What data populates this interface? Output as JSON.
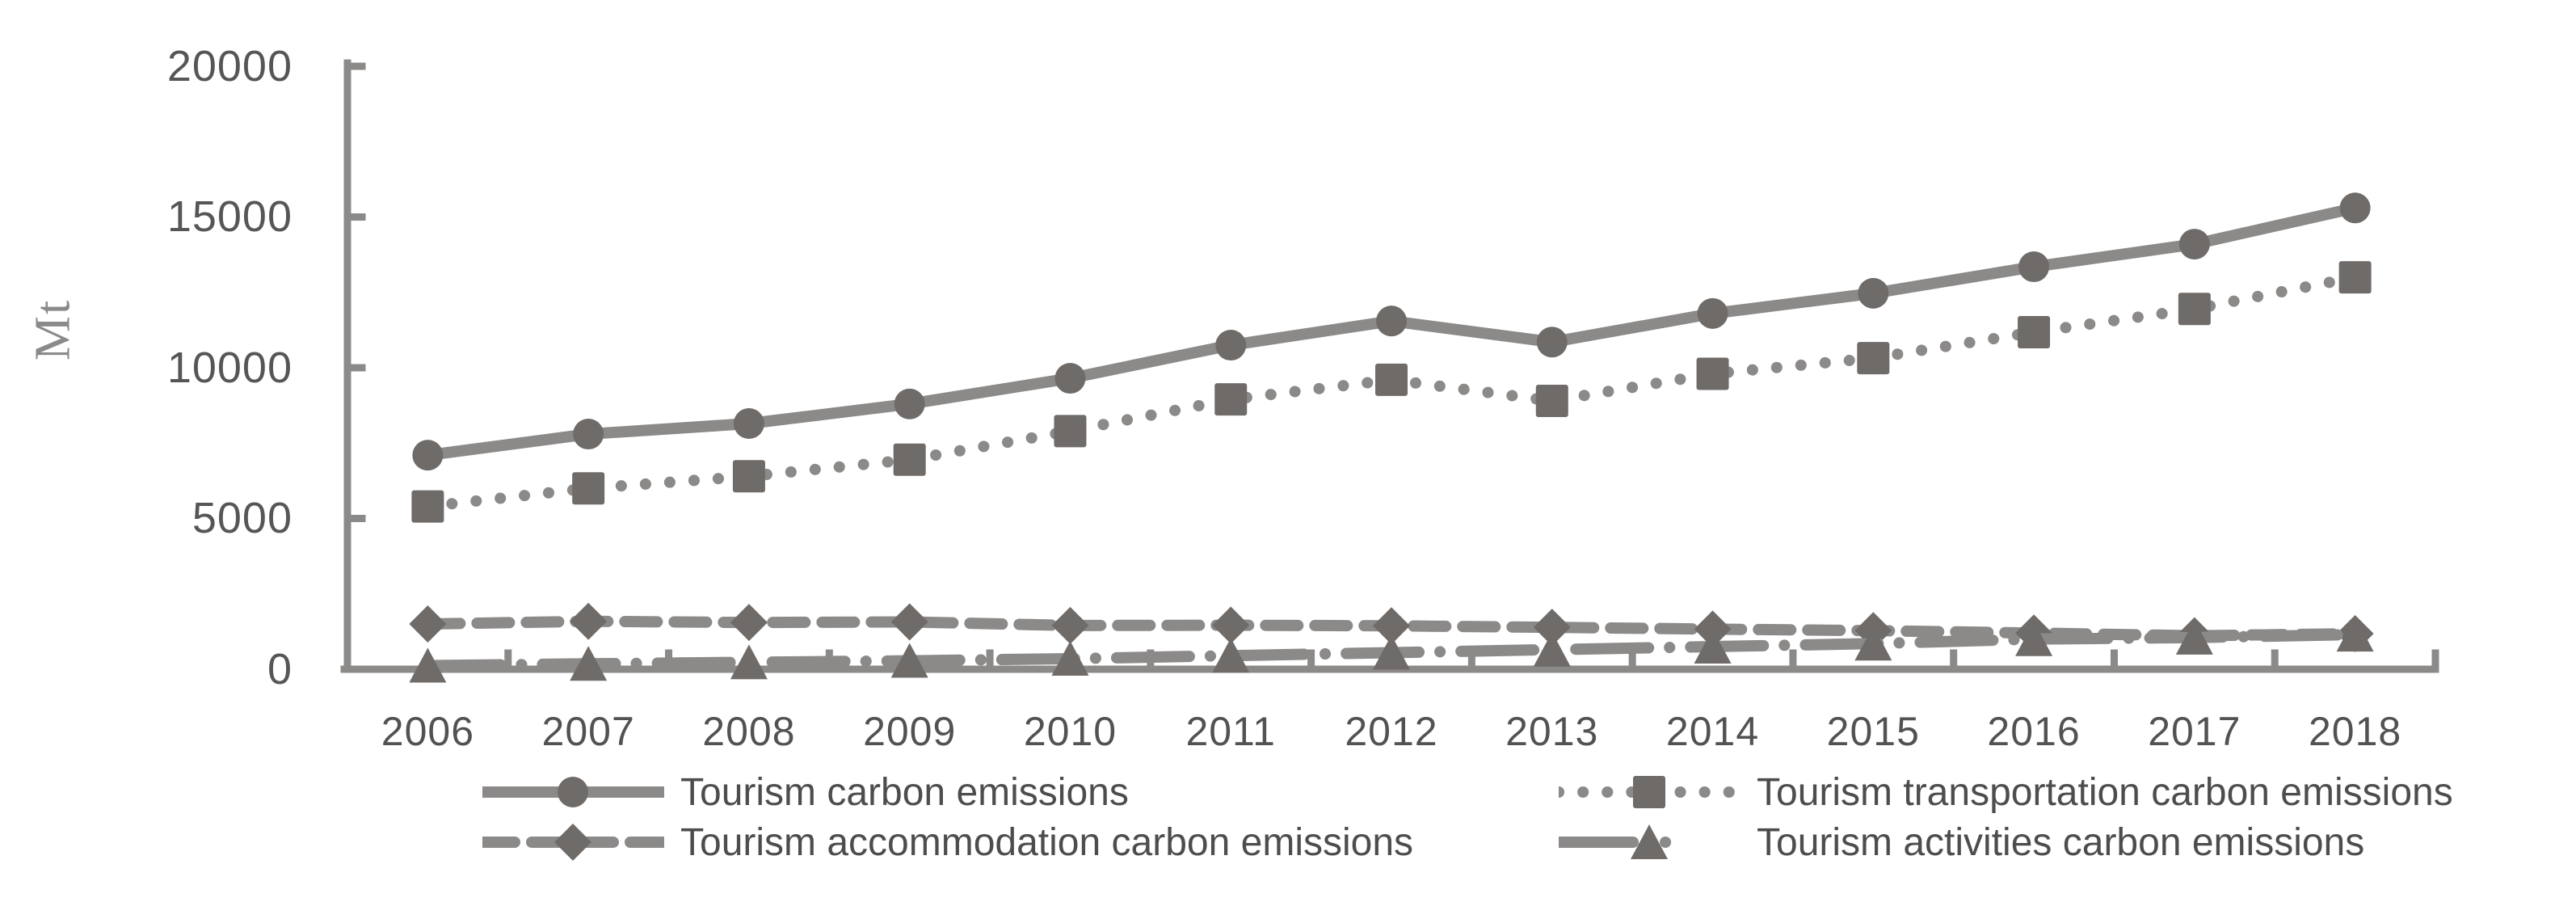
{
  "colors": {
    "line_gray": "#8c8a89",
    "marker_gray": "#6f6b69",
    "axis_gray": "#8c8a89",
    "tick_text": "#565656",
    "legend_text": "#4d4d4d"
  },
  "legend": {
    "items": [
      {
        "label": "Tourism carbon emissions",
        "series_index": 0
      },
      {
        "label": "Tourism transportation carbon emissions",
        "series_index": 1
      },
      {
        "label": "Tourism accommodation carbon emissions",
        "series_index": 2
      },
      {
        "label": "Tourism activities carbon emissions",
        "series_index": 3
      }
    ]
  },
  "chart_data": {
    "type": "line",
    "title": "",
    "xlabel": "",
    "ylabel": "Mt",
    "ylim": [
      0,
      20000
    ],
    "y_ticks": [
      0,
      5000,
      10000,
      15000,
      20000
    ],
    "y_tick_labels_top_to_bottom": [
      "20000",
      "15000",
      "10000",
      "5000",
      "0"
    ],
    "grid": false,
    "legend_position": "bottom",
    "categories": [
      "2006",
      "2007",
      "2008",
      "2009",
      "2010",
      "2011",
      "2012",
      "2013",
      "2014",
      "2015",
      "2016",
      "2017",
      "2018"
    ],
    "series": [
      {
        "name": "Tourism carbon emissions",
        "marker": "circle",
        "line_style": "solid",
        "values": [
          7100,
          7800,
          8150,
          8800,
          9650,
          10750,
          11550,
          10850,
          11800,
          12470,
          13350,
          14100,
          15300
        ]
      },
      {
        "name": "Tourism transportation carbon emissions",
        "marker": "square",
        "line_style": "dotted",
        "values": [
          5400,
          6000,
          6400,
          6950,
          7900,
          8950,
          9600,
          8900,
          9800,
          10320,
          11180,
          11950,
          13000
        ]
      },
      {
        "name": "Tourism accommodation carbon emissions",
        "marker": "diamond",
        "line_style": "dashed",
        "values": [
          1500,
          1590,
          1550,
          1570,
          1450,
          1460,
          1440,
          1390,
          1330,
          1280,
          1200,
          1110,
          1180
        ]
      },
      {
        "name": "Tourism activities carbon emissions",
        "marker": "triangle",
        "line_style": "dash-dot",
        "values": [
          120,
          180,
          230,
          280,
          350,
          450,
          550,
          650,
          750,
          850,
          1000,
          1050,
          1150
        ]
      }
    ]
  }
}
